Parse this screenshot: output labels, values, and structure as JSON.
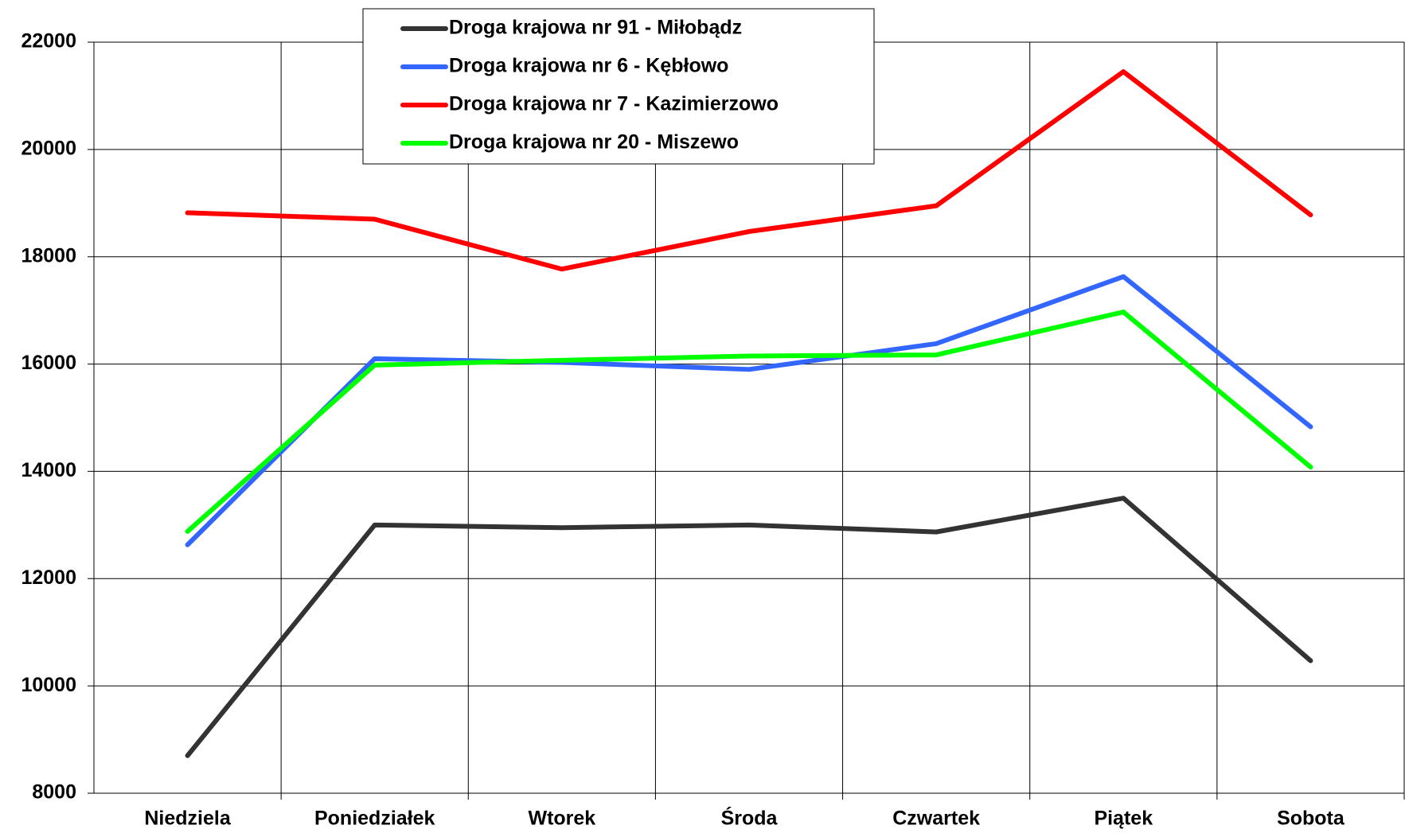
{
  "chart_data": {
    "type": "line",
    "categories": [
      "Niedziela",
      "Poniedziałek",
      "Wtorek",
      "Środa",
      "Czwartek",
      "Piątek",
      "Sobota"
    ],
    "series": [
      {
        "name": "Droga krajowa nr 91 - Miłobądz",
        "color": "#333333",
        "values": [
          8700,
          13000,
          12950,
          13000,
          12870,
          13500,
          10470
        ]
      },
      {
        "name": "Droga krajowa nr 6 - Kębłowo",
        "color": "#3366ff",
        "values": [
          12630,
          16100,
          16030,
          15900,
          16380,
          17630,
          14830
        ]
      },
      {
        "name": "Droga krajowa nr 7 - Kazimierzowo",
        "color": "#ff0000",
        "values": [
          18820,
          18700,
          17770,
          18470,
          18950,
          21450,
          18780
        ]
      },
      {
        "name": "Droga krajowa nr 20 - Miszewo",
        "color": "#00ff00",
        "values": [
          12880,
          15980,
          16070,
          16150,
          16170,
          16970,
          14080
        ]
      }
    ],
    "ylim": [
      8000,
      22000
    ],
    "yticks": [
      8000,
      10000,
      12000,
      14000,
      16000,
      18000,
      20000,
      22000
    ],
    "grid": true,
    "legend": "top"
  }
}
